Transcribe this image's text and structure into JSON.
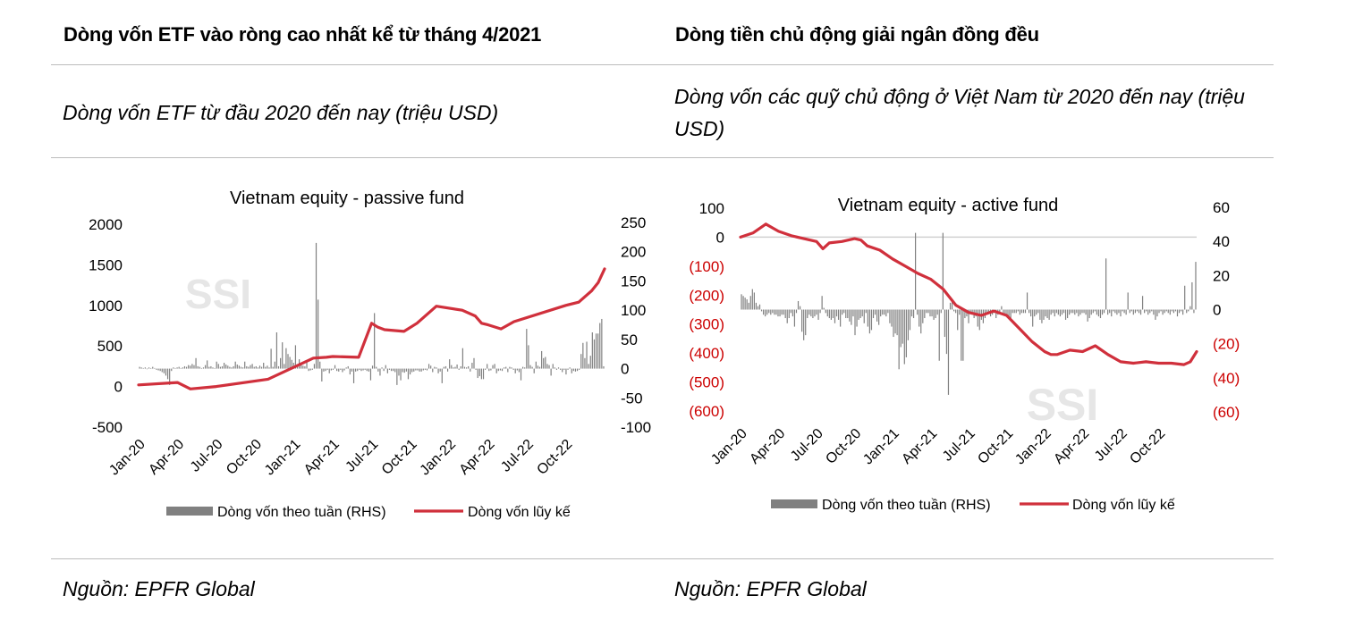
{
  "left": {
    "heading": "Dòng vốn ETF vào ròng cao nhất kể từ tháng 4/2021",
    "subtitle": "Dòng vốn ETF từ đầu 2020 đến nay (triệu USD)",
    "source": "Nguồn: EPFR Global"
  },
  "right": {
    "heading": "Dòng tiền chủ động giải ngân đồng đều",
    "subtitle_line1": "Dòng vốn các quỹ chủ động ở Việt Nam từ 2020 đến nay (triệu",
    "subtitle_line2": "USD)",
    "source": "Nguồn: EPFR Global"
  },
  "colors": {
    "bars": "#808080",
    "line": "#d0303c",
    "negative_labels": "#cc0000",
    "watermark": "#e6e6e6"
  },
  "chart_data": [
    {
      "type": "bar+line",
      "title": "Vietnam equity - passive fund",
      "watermark": "SSI",
      "x_tick_labels": [
        "Jan-20",
        "Apr-20",
        "Jul-20",
        "Oct-20",
        "Jan-21",
        "Apr-21",
        "Jul-21",
        "Oct-21",
        "Jan-22",
        "Apr-22",
        "Jul-22",
        "Oct-22"
      ],
      "y_left": {
        "min": -500,
        "max": 2000,
        "ticks": [
          2000,
          1500,
          1000,
          500,
          0,
          -500
        ],
        "tick_labels": [
          "2000",
          "1500",
          "1000",
          "500",
          "0",
          "-500"
        ]
      },
      "y_right": {
        "min": -100,
        "max": 250,
        "ticks": [
          250,
          200,
          150,
          100,
          50,
          0,
          -50,
          -100
        ],
        "tick_labels": [
          "250",
          "200",
          "150",
          "100",
          "50",
          "0",
          "-50",
          "-100"
        ]
      },
      "series": [
        {
          "name": "Dòng vốn theo tuần (RHS)",
          "kind": "bar",
          "axis": "right",
          "x_range_months": [
            0,
            36
          ],
          "values": [
            3,
            2,
            1,
            2,
            -1,
            2,
            1,
            3,
            1,
            -2,
            -3,
            -4,
            -6,
            -8,
            -12,
            -18,
            -28,
            -4,
            2,
            1,
            2,
            3,
            1,
            2,
            4,
            3,
            6,
            5,
            8,
            6,
            18,
            4,
            3,
            1,
            2,
            6,
            14,
            3,
            4,
            2,
            1,
            12,
            8,
            3,
            4,
            10,
            7,
            5,
            3,
            2,
            4,
            12,
            7,
            5,
            3,
            2,
            12,
            4,
            3,
            6,
            8,
            3,
            4,
            2,
            5,
            3,
            10,
            3,
            5,
            2,
            34,
            3,
            12,
            62,
            4,
            18,
            45,
            8,
            35,
            25,
            20,
            15,
            10,
            40,
            3,
            16,
            8,
            5,
            4,
            12,
            -4,
            -3,
            -2,
            8,
            215,
            118,
            12,
            -22,
            -5,
            -4,
            -2,
            -8,
            -3,
            -2,
            6,
            -4,
            -5,
            -2,
            -6,
            -3,
            2,
            4,
            -10,
            -5,
            -25,
            -5,
            -4,
            -2,
            -4,
            -3,
            -2,
            -4,
            -5,
            -20,
            5,
            95,
            3,
            -5,
            -12,
            2,
            -4,
            6,
            -8,
            -2,
            -4,
            -4,
            -6,
            -28,
            -12,
            -20,
            -6,
            -7,
            -5,
            -18,
            -10,
            -6,
            -5,
            -3,
            -3,
            -5,
            -5,
            -3,
            -2,
            -3,
            8,
            5,
            -6,
            3,
            2,
            -8,
            -5,
            -25,
            3,
            4,
            -5,
            16,
            6,
            2,
            3,
            7,
            -2,
            4,
            35,
            3,
            2,
            4,
            -5,
            10,
            18,
            -2,
            -16,
            -13,
            -18,
            -18,
            -2,
            8,
            -4,
            -3,
            6,
            8,
            -8,
            -4,
            -3,
            -4,
            2,
            3,
            -6,
            3,
            2,
            -2,
            -8,
            -3,
            -6,
            -20,
            3,
            2,
            68,
            40,
            6,
            3,
            -8,
            12,
            5,
            3,
            30,
            18,
            20,
            8,
            6,
            -12,
            8,
            2,
            -2,
            2,
            -2,
            -6,
            -2,
            -10,
            -2,
            2,
            -8,
            -4,
            -5,
            -4,
            -2,
            25,
            44,
            18,
            46,
            8,
            22,
            62,
            50,
            60,
            60,
            78,
            85,
            4
          ]
        },
        {
          "name": "Dòng vốn lũy kế",
          "kind": "line",
          "axis": "left",
          "x_month": [
            0,
            3,
            4,
            6,
            10,
            13.5,
            14.5,
            15,
            17,
            18,
            18.5,
            19,
            20.5,
            21.5,
            23,
            25,
            26,
            26.5,
            27,
            28,
            29,
            33,
            34,
            34.5,
            35,
            35.5,
            36
          ],
          "values": [
            20,
            50,
            -30,
            0,
            90,
            350,
            360,
            370,
            360,
            780,
            730,
            700,
            680,
            780,
            990,
            940,
            870,
            780,
            760,
            710,
            800,
            1000,
            1040,
            1110,
            1180,
            1280,
            1450
          ]
        }
      ],
      "legend": {
        "placement": "bottom"
      }
    },
    {
      "type": "bar+line",
      "title": "Vietnam equity - active fund",
      "watermark": "SSI",
      "x_tick_labels": [
        "Jan-20",
        "Apr-20",
        "Jul-20",
        "Oct-20",
        "Jan-21",
        "Apr-21",
        "Jul-21",
        "Oct-21",
        "Jan-22",
        "Apr-22",
        "Jul-22",
        "Oct-22"
      ],
      "y_left": {
        "min": -600,
        "max": 100,
        "ticks": [
          100,
          0,
          -100,
          -200,
          -300,
          -400,
          -500,
          -600
        ],
        "tick_labels": [
          "100",
          "0",
          "(100)",
          "(200)",
          "(300)",
          "(400)",
          "(500)",
          "(600)"
        ]
      },
      "y_right": {
        "min": -60,
        "max": 60,
        "ticks": [
          60,
          40,
          20,
          0,
          -20,
          -40,
          -60
        ],
        "tick_labels": [
          "60",
          "40",
          "20",
          "0",
          "(20)",
          "(40)",
          "(60)"
        ]
      },
      "series": [
        {
          "name": "Dòng vốn theo tuần (RHS)",
          "kind": "bar",
          "axis": "right",
          "x_range_months": [
            0,
            36
          ],
          "values": [
            9,
            8,
            7,
            6,
            4,
            8,
            12,
            10,
            4,
            2,
            3,
            -1,
            -3,
            -4,
            -3,
            -2,
            -3,
            -2,
            -3,
            -3,
            -4,
            -4,
            -3,
            -3,
            -5,
            -8,
            -5,
            -2,
            -4,
            -10,
            -2,
            5,
            2,
            -13,
            -18,
            -15,
            -5,
            -3,
            -4,
            -5,
            -4,
            -3,
            -6,
            -2,
            8,
            1,
            -2,
            -4,
            -5,
            -6,
            -5,
            -8,
            -4,
            -6,
            -10,
            -3,
            -2,
            -5,
            -5,
            -7,
            -9,
            -4,
            -15,
            -10,
            -6,
            -5,
            -4,
            -8,
            -2,
            -10,
            -14,
            -12,
            -5,
            -3,
            -7,
            -9,
            -4,
            -3,
            -3,
            -4,
            -2,
            -8,
            -10,
            -16,
            -14,
            -15,
            -35,
            -22,
            -20,
            -32,
            -28,
            -18,
            -12,
            -4,
            -5,
            45,
            -3,
            -10,
            -14,
            -8,
            -5,
            -2,
            -2,
            -4,
            -4,
            -6,
            -5,
            -3,
            -30,
            -2,
            45,
            -16,
            -26,
            -50,
            4,
            5,
            -1,
            -2,
            -12,
            -3,
            -30,
            -30,
            -5,
            -4,
            -8,
            -2,
            -3,
            -5,
            -4,
            -10,
            -12,
            -6,
            -8,
            -5,
            -3,
            -2,
            -4,
            -3,
            -2,
            -5,
            -3,
            -2,
            2,
            -2,
            -3,
            -3,
            -4,
            -5,
            -2,
            -2,
            -2,
            -1,
            -3,
            -2,
            -2,
            -2,
            10,
            -2,
            -4,
            -10,
            -4,
            -3,
            -2,
            -6,
            -8,
            -6,
            -4,
            -5,
            -6,
            -3,
            -2,
            -4,
            -2,
            -3,
            -4,
            -3,
            -2,
            -6,
            -5,
            -3,
            -2,
            -2,
            -3,
            -2,
            -4,
            -3,
            -2,
            -2,
            -3,
            -7,
            -5,
            -3,
            -2,
            -1,
            -3,
            -4,
            -5,
            -3,
            -2,
            30,
            -3,
            -2,
            -4,
            -1,
            -2,
            -3,
            -2,
            -4,
            -1,
            -2,
            -3,
            10,
            -2,
            -1,
            -3,
            -2,
            -1,
            -2,
            -3,
            8,
            -2,
            -1,
            -3,
            -2,
            -1,
            -3,
            -6,
            -4,
            -2,
            -1,
            -3,
            -2,
            -1,
            -2,
            -3,
            -1,
            -2,
            -1,
            -4,
            -2,
            -1,
            -3,
            14,
            -2,
            -1,
            2,
            16,
            -2,
            28
          ]
        },
        {
          "name": "Dòng vốn lũy kế",
          "kind": "line",
          "axis": "left",
          "x_month": [
            0,
            1,
            2,
            3,
            4,
            5,
            6,
            6.5,
            7,
            8,
            9,
            9.5,
            10,
            11,
            12,
            13,
            14,
            15,
            16,
            17,
            18,
            19,
            20,
            21,
            22,
            23,
            24,
            24.5,
            25,
            26,
            27,
            28,
            29,
            30,
            31,
            32,
            33,
            34,
            35,
            35.5,
            36
          ],
          "values": [
            0,
            15,
            45,
            20,
            5,
            -5,
            -15,
            -40,
            -20,
            -15,
            -5,
            -10,
            -30,
            -45,
            -75,
            -100,
            -125,
            -145,
            -180,
            -235,
            -260,
            -270,
            -255,
            -270,
            -315,
            -360,
            -395,
            -405,
            -405,
            -390,
            -395,
            -375,
            -405,
            -430,
            -435,
            -430,
            -435,
            -435,
            -440,
            -430,
            -395
          ]
        }
      ],
      "legend": {
        "placement": "bottom"
      }
    }
  ]
}
